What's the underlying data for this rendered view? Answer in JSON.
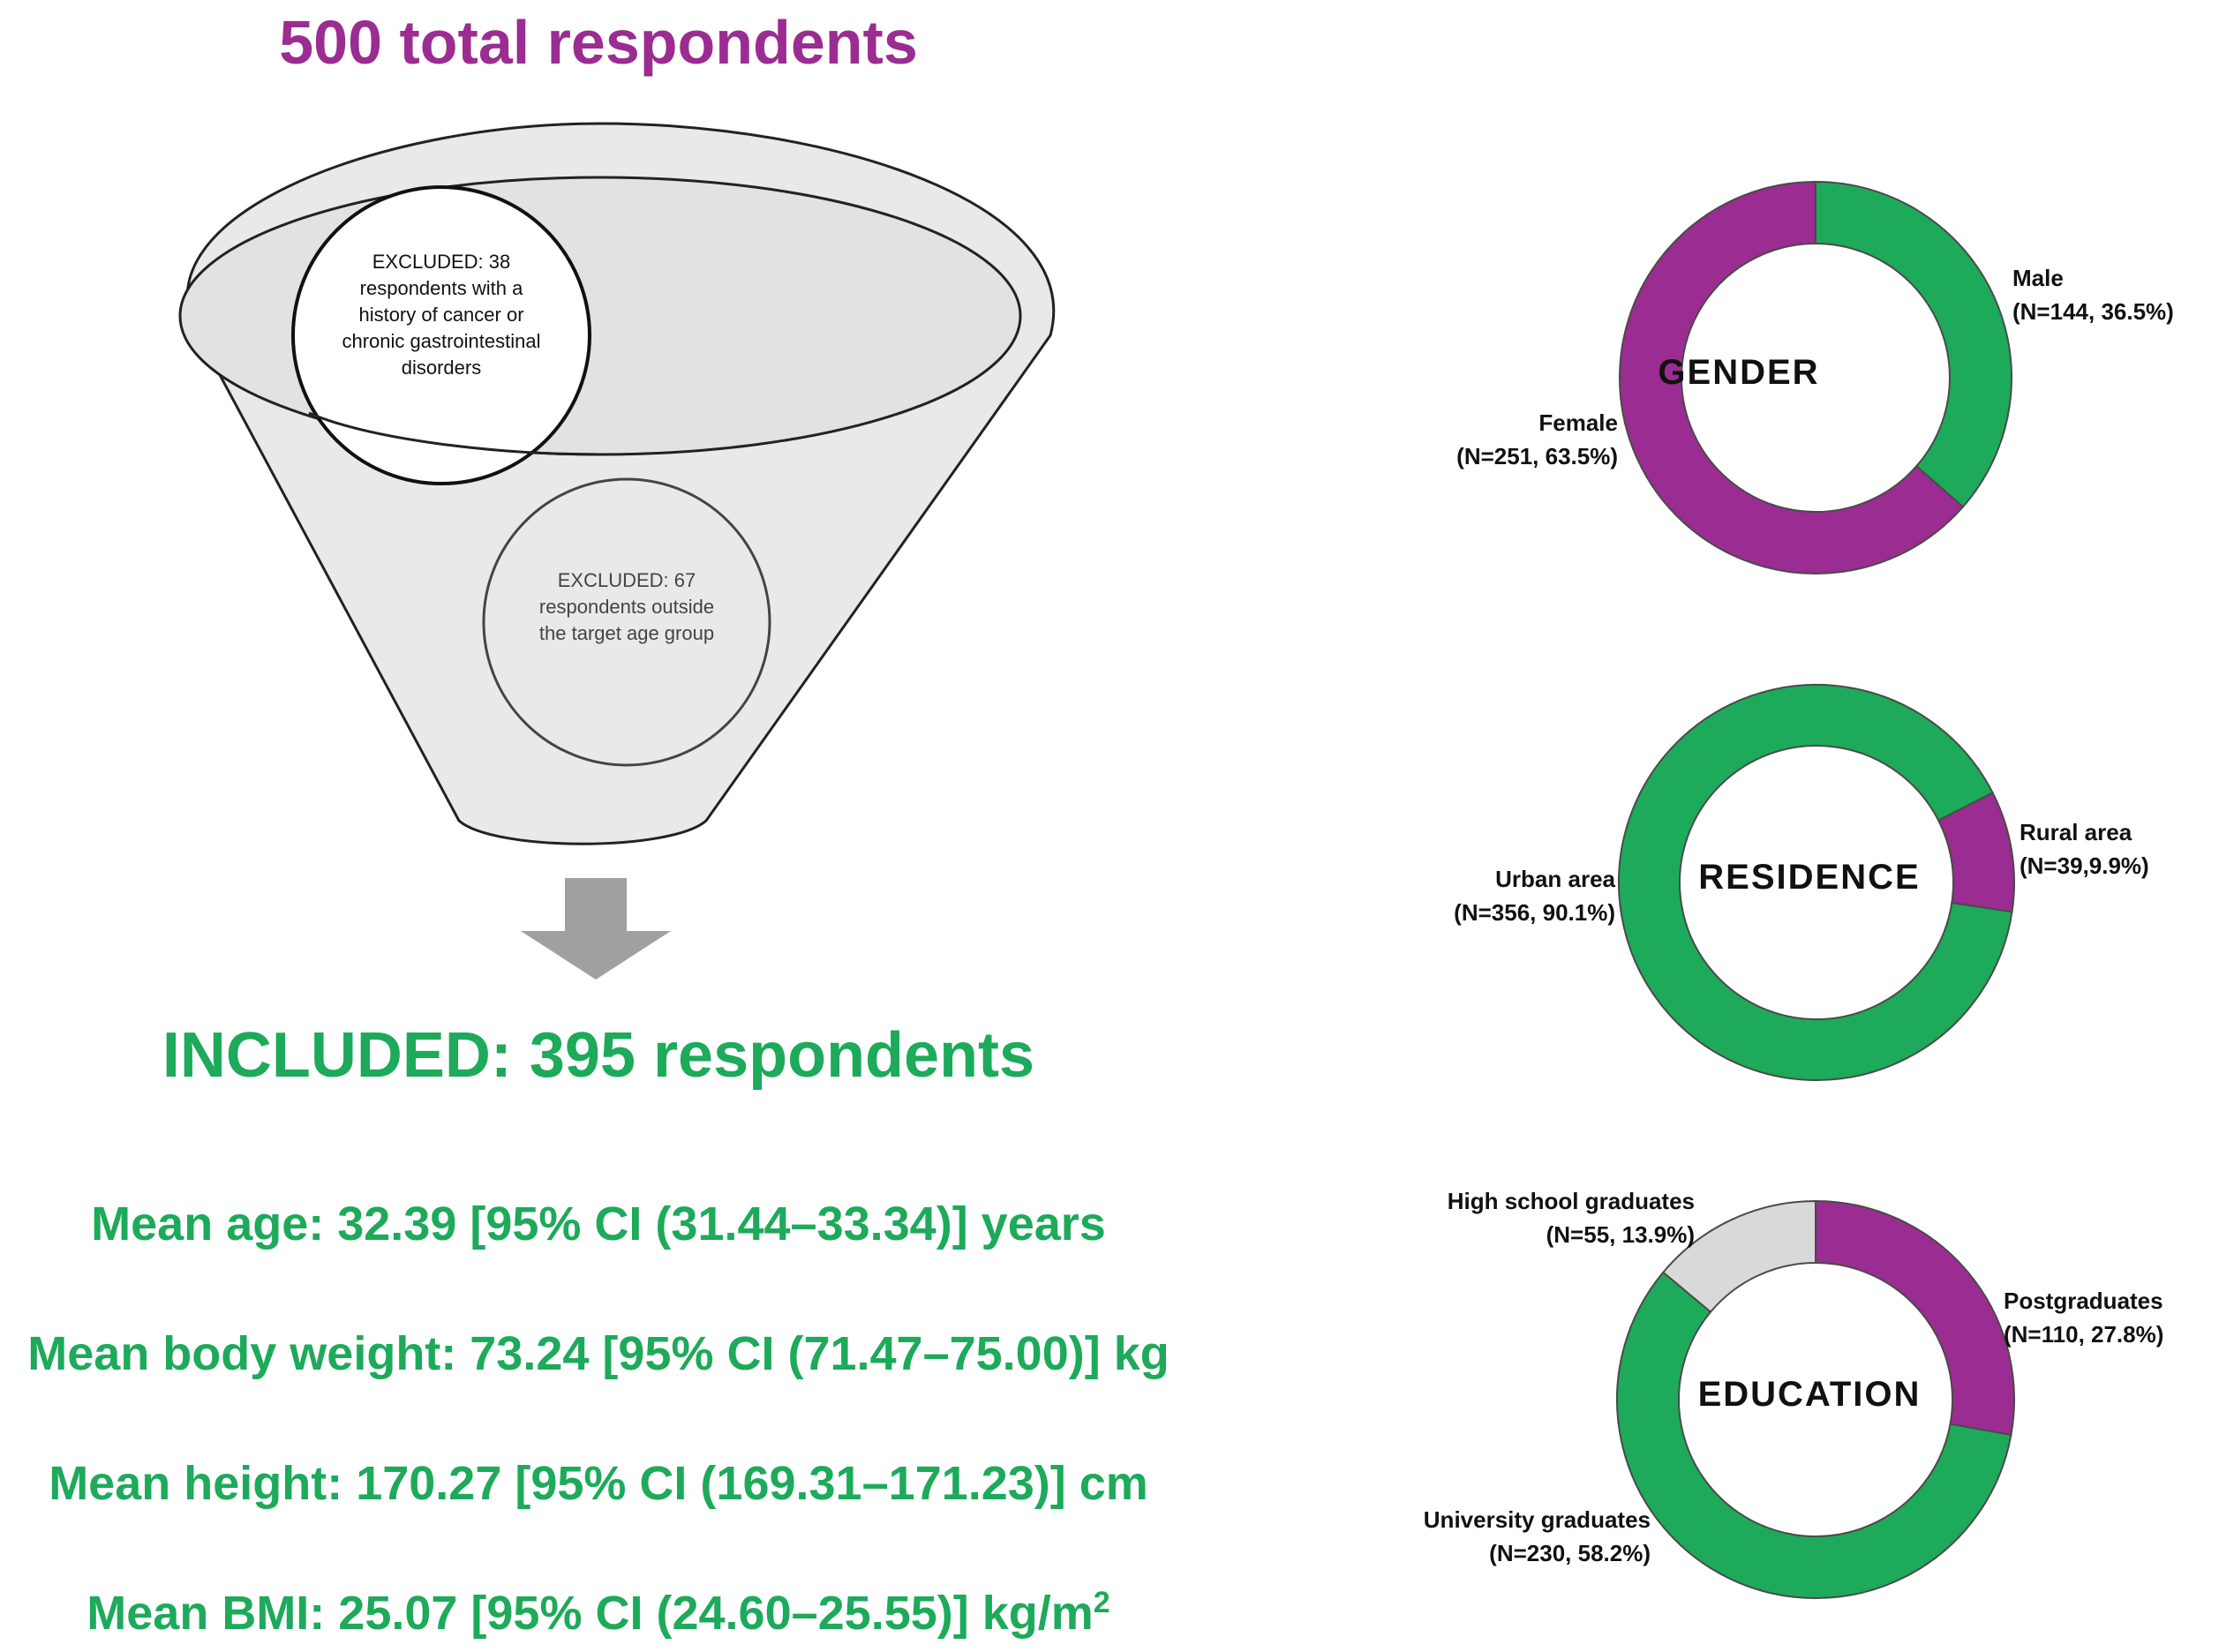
{
  "title": "500 total  respondents",
  "exclusions": [
    {
      "text": "EXCLUDED: 38 respondents with a history of cancer or chronic gastrointestinal disorders"
    },
    {
      "text": "EXCLUDED: 67 respondents outside the target age group"
    }
  ],
  "included": "INCLUDED: 395 respondents",
  "stats": {
    "age": "Mean age: 32.39 [95% CI (31.44–33.34)] years",
    "weight": "Mean body weight: 73.24 [95% CI (71.47–75.00)] kg",
    "height": "Mean height: 170.27 [95% CI (169.31–171.23)] cm",
    "bmi_text": "Mean BMI: 25.07 [95% CI (24.60–25.55)] kg/m",
    "bmi_sup": "2"
  },
  "colors": {
    "purple": "#9B2C91",
    "green": "#1DAA5A",
    "grey": "#D9D9D9",
    "funnel": "#E9E9E9"
  },
  "chart_data": [
    {
      "type": "pie",
      "title": "GENDER",
      "slices": [
        {
          "name": "Male",
          "label": "(N=144, 36.5%)",
          "value": 144,
          "percent": 36.5,
          "color": "#1DAA5A"
        },
        {
          "name": "Female",
          "label": "(N=251, 63.5%)",
          "value": 251,
          "percent": 63.5,
          "color": "#9B2C91"
        }
      ]
    },
    {
      "type": "pie",
      "title": "RESIDENCE",
      "slices": [
        {
          "name": "Rural area",
          "label": "(N=39,9.9%)",
          "value": 39,
          "percent": 9.9,
          "color": "#9B2C91"
        },
        {
          "name": "Urban area",
          "label": "(N=356, 90.1%)",
          "value": 356,
          "percent": 90.1,
          "color": "#1DAA5A"
        }
      ]
    },
    {
      "type": "pie",
      "title": "EDUCATION",
      "slices": [
        {
          "name": "Postgraduates",
          "label": "(N=110, 27.8%)",
          "value": 110,
          "percent": 27.8,
          "color": "#9B2C91"
        },
        {
          "name": "University graduates",
          "label": "(N=230, 58.2%)",
          "value": 230,
          "percent": 58.2,
          "color": "#1DAA5A"
        },
        {
          "name": "High school graduates",
          "label": "(N=55, 13.9%)",
          "value": 55,
          "percent": 13.9,
          "color": "#D9D9D9"
        }
      ]
    }
  ]
}
